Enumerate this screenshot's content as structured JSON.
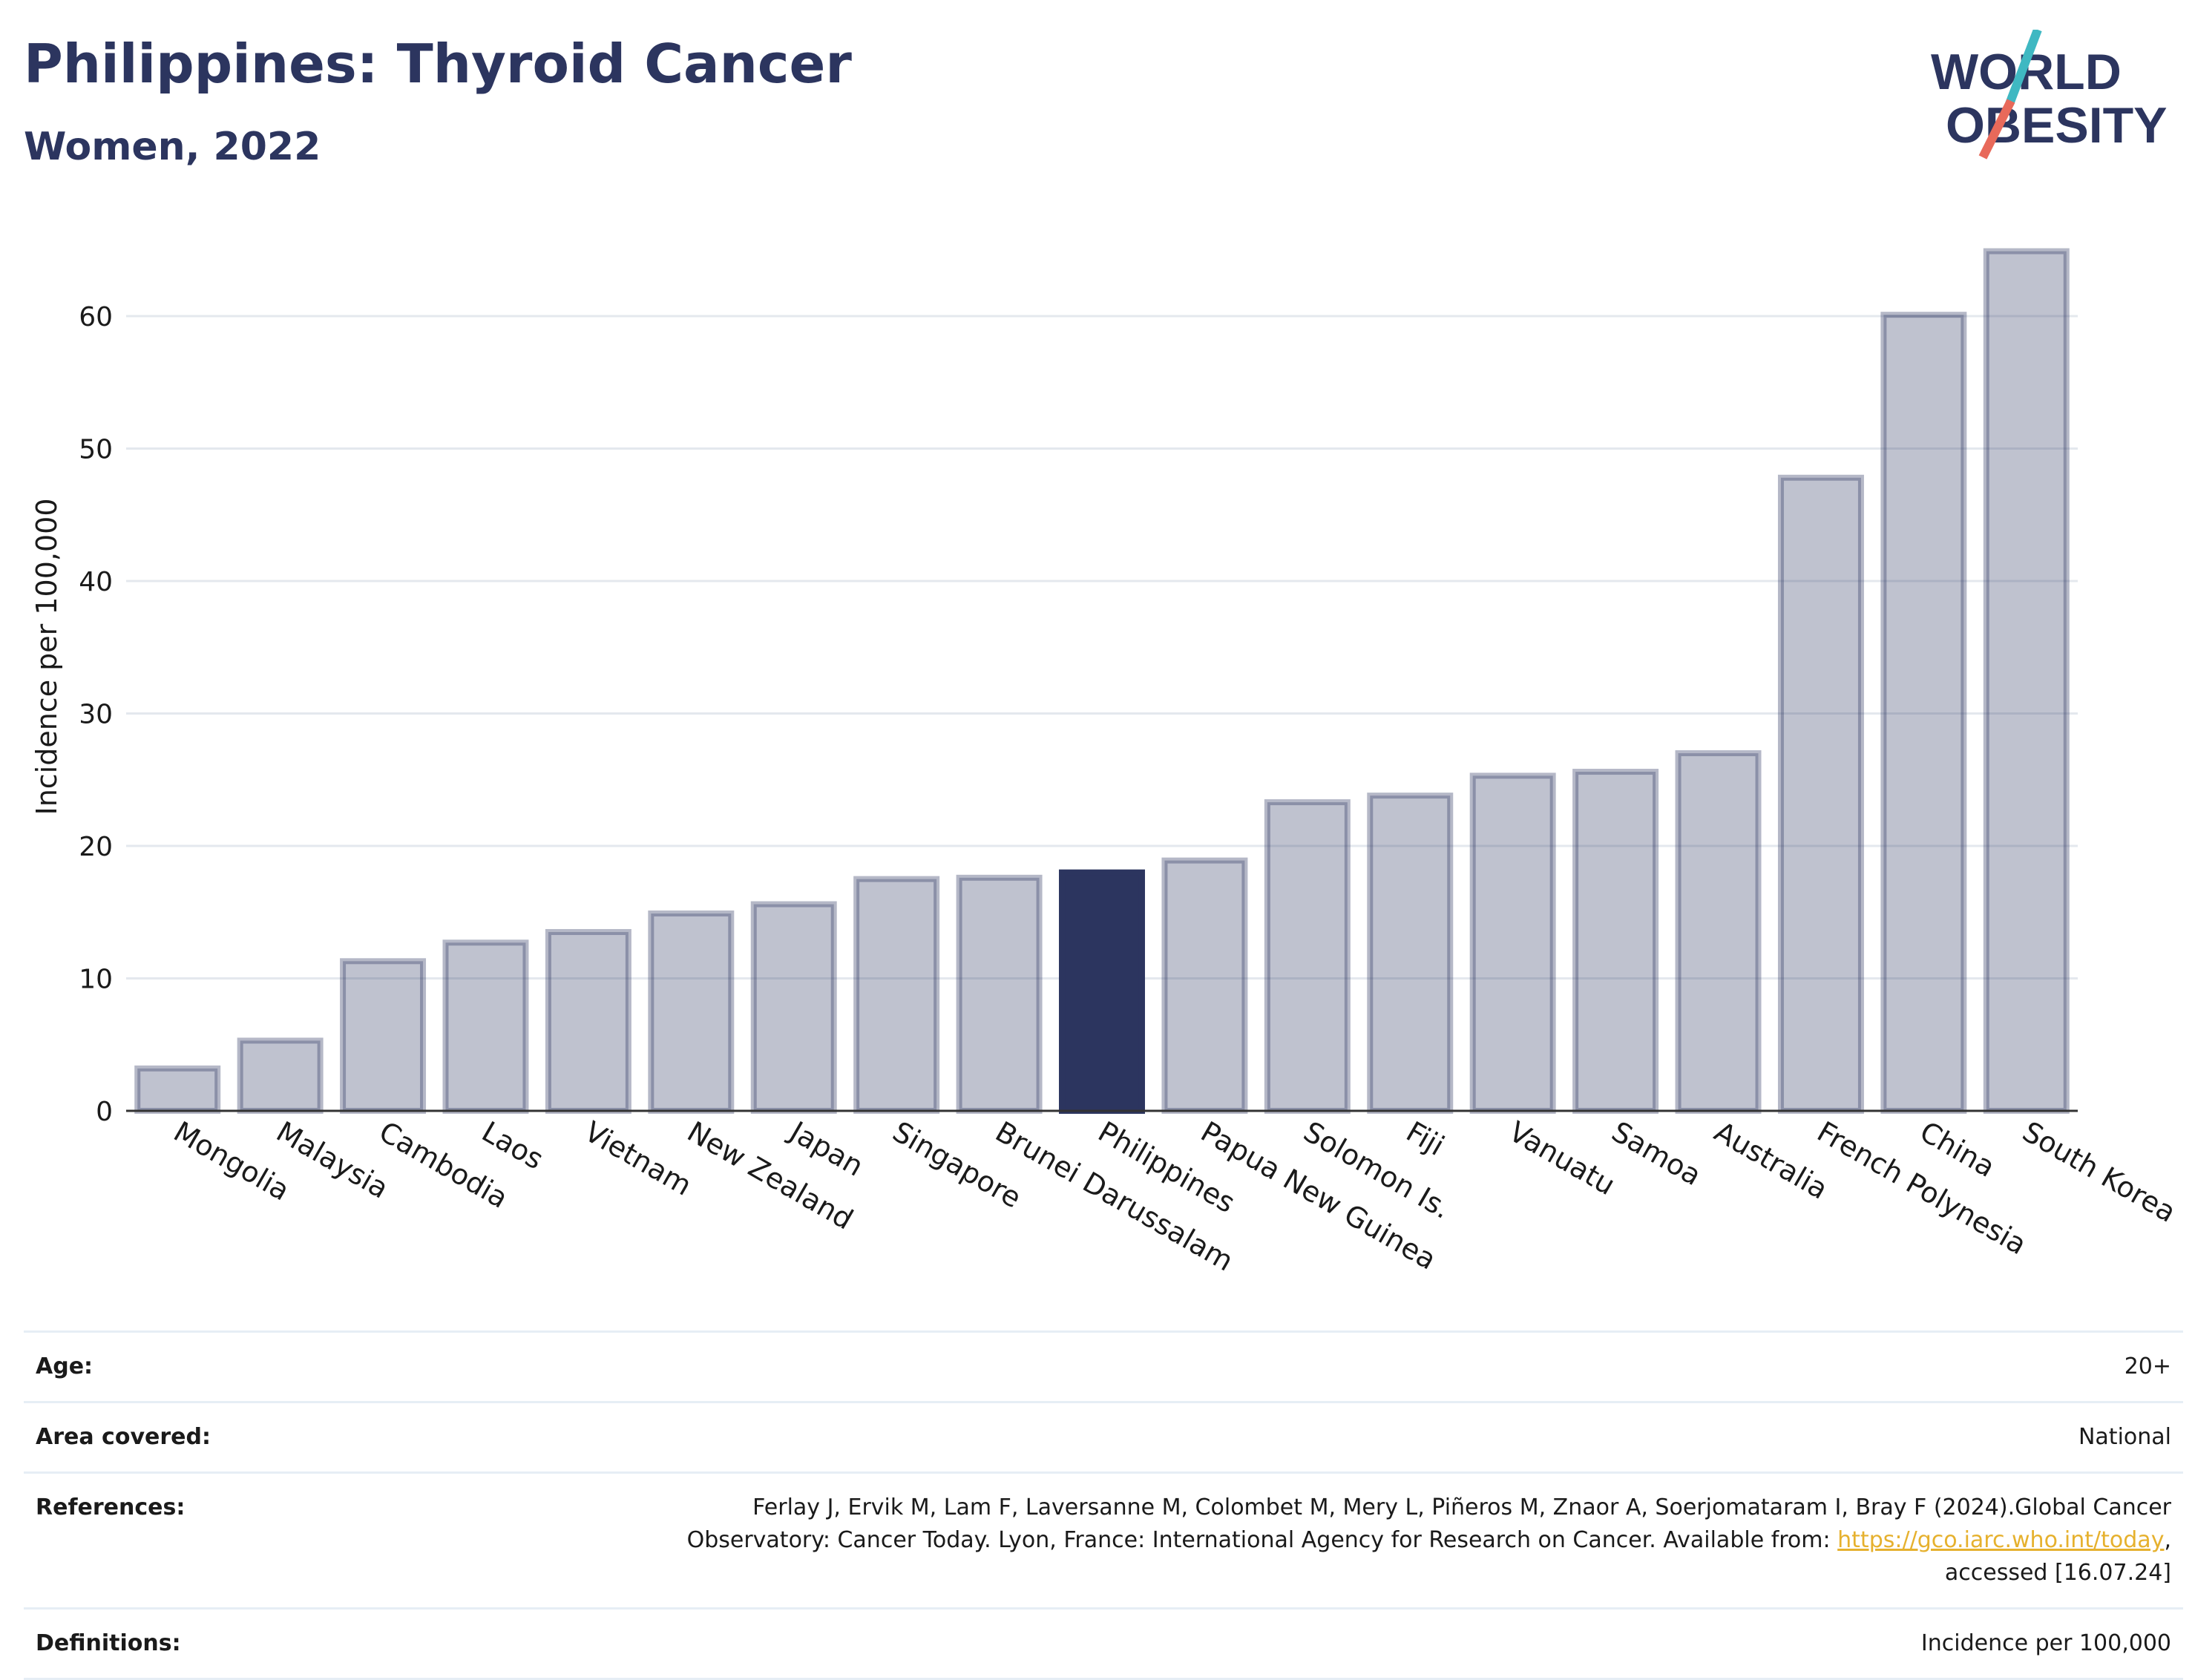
{
  "header": {
    "title": "Philippines: Thyroid Cancer",
    "subtitle": "Women, 2022"
  },
  "logo": {
    "line1": "WORLD",
    "line2": "OBESITY",
    "colors": {
      "text": "#2c355f",
      "slash_top": "#3fb8c2",
      "slash_bottom": "#e8695a"
    }
  },
  "chart_data": {
    "type": "bar",
    "title": "Philippines: Thyroid Cancer",
    "subtitle": "Women, 2022",
    "ylabel": "Incidence per 100,000",
    "xlabel": "",
    "ylim": [
      0,
      68
    ],
    "yticks": [
      0,
      10,
      20,
      30,
      40,
      50,
      60
    ],
    "grid": true,
    "highlight": "Philippines",
    "colors": {
      "bar": "#2c355f",
      "highlight": "#2c355f"
    },
    "categories": [
      "Mongolia",
      "Malaysia",
      "Cambodia",
      "Laos",
      "Vietnam",
      "New Zealand",
      "Japan",
      "Singapore",
      "Brunei Darussalam",
      "Philippines",
      "Papua New Guinea",
      "Solomon Is.",
      "Fiji",
      "Vanuatu",
      "Samoa",
      "Australia",
      "French Polynesia",
      "China",
      "South Korea"
    ],
    "values": [
      3.2,
      5.3,
      11.3,
      12.7,
      13.5,
      14.9,
      15.6,
      17.5,
      17.6,
      18.0,
      18.9,
      23.3,
      23.8,
      25.3,
      25.6,
      27.0,
      47.8,
      60.1,
      64.9
    ]
  },
  "meta": {
    "rows": [
      {
        "label": "Age:",
        "value": "20+"
      },
      {
        "label": "Area covered:",
        "value": "National"
      },
      {
        "label": "References:",
        "value_pre": "Ferlay J, Ervik M, Lam F, Laversanne M, Colombet M, Mery L, Piñeros M, Znaor A, Soerjomataram I, Bray F (2024).Global Cancer Observatory: Cancer Today. Lyon, France: International Agency for Research on Cancer. Available from: ",
        "link": "https://gco.iarc.who.int/today",
        "value_post": ", accessed [16.07.24]"
      },
      {
        "label": "Definitions:",
        "value": "Incidence per 100,000"
      }
    ]
  }
}
